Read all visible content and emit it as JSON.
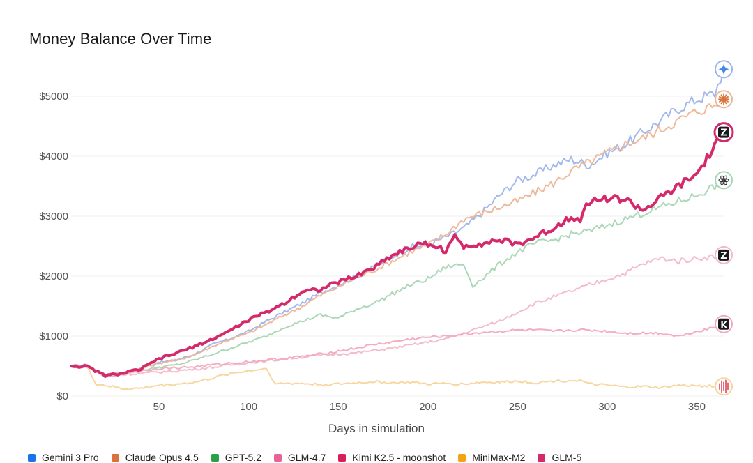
{
  "chart_data": {
    "type": "line",
    "title": "Money Balance Over Time",
    "xlabel": "Days in simulation",
    "ylabel": "",
    "xlim": [
      1,
      365
    ],
    "ylim": [
      0,
      5500
    ],
    "x_ticks": [
      50,
      100,
      150,
      200,
      250,
      300,
      350
    ],
    "y_ticks": [
      0,
      1000,
      2000,
      3000,
      4000,
      5000
    ],
    "y_tick_labels": [
      "$0",
      "$1000",
      "$2000",
      "$3000",
      "$4000",
      "$5000"
    ],
    "grid": "horizontal",
    "legend_position": "bottom",
    "series": [
      {
        "name": "Gemini 3 Pro",
        "color": "#9db5ea",
        "legend_color": "#1a73e8",
        "icon": "gemini-sparkle-icon",
        "final": 5450,
        "highlight": false,
        "points": [
          [
            1,
            500
          ],
          [
            10,
            520
          ],
          [
            20,
            330
          ],
          [
            30,
            380
          ],
          [
            40,
            470
          ],
          [
            50,
            560
          ],
          [
            60,
            600
          ],
          [
            70,
            700
          ],
          [
            80,
            860
          ],
          [
            90,
            960
          ],
          [
            100,
            1080
          ],
          [
            110,
            1250
          ],
          [
            120,
            1400
          ],
          [
            130,
            1550
          ],
          [
            140,
            1720
          ],
          [
            150,
            1850
          ],
          [
            160,
            2000
          ],
          [
            170,
            2150
          ],
          [
            180,
            2320
          ],
          [
            190,
            2480
          ],
          [
            200,
            2530
          ],
          [
            210,
            2650
          ],
          [
            220,
            2800
          ],
          [
            230,
            3050
          ],
          [
            240,
            3350
          ],
          [
            250,
            3600
          ],
          [
            260,
            3700
          ],
          [
            270,
            3850
          ],
          [
            280,
            3950
          ],
          [
            290,
            3850
          ],
          [
            300,
            4050
          ],
          [
            310,
            4200
          ],
          [
            320,
            4400
          ],
          [
            330,
            4600
          ],
          [
            340,
            4800
          ],
          [
            350,
            4950
          ],
          [
            360,
            5050
          ],
          [
            365,
            5450
          ]
        ]
      },
      {
        "name": "Claude Opus 4.5",
        "color": "#edb596",
        "legend_color": "#d9733c",
        "icon": "claude-burst-icon",
        "final": 4950,
        "highlight": false,
        "points": [
          [
            1,
            500
          ],
          [
            10,
            510
          ],
          [
            20,
            340
          ],
          [
            30,
            360
          ],
          [
            40,
            460
          ],
          [
            50,
            550
          ],
          [
            60,
            600
          ],
          [
            70,
            690
          ],
          [
            80,
            830
          ],
          [
            90,
            950
          ],
          [
            100,
            1050
          ],
          [
            110,
            1200
          ],
          [
            120,
            1350
          ],
          [
            130,
            1500
          ],
          [
            140,
            1680
          ],
          [
            150,
            1820
          ],
          [
            160,
            1970
          ],
          [
            170,
            2100
          ],
          [
            180,
            2250
          ],
          [
            190,
            2400
          ],
          [
            200,
            2520
          ],
          [
            210,
            2700
          ],
          [
            220,
            2950
          ],
          [
            230,
            3050
          ],
          [
            240,
            3150
          ],
          [
            250,
            3250
          ],
          [
            260,
            3400
          ],
          [
            270,
            3550
          ],
          [
            280,
            3750
          ],
          [
            290,
            3900
          ],
          [
            300,
            4050
          ],
          [
            310,
            4200
          ],
          [
            320,
            4300
          ],
          [
            330,
            4450
          ],
          [
            340,
            4600
          ],
          [
            350,
            4750
          ],
          [
            360,
            4850
          ],
          [
            365,
            4950
          ]
        ]
      },
      {
        "name": "GPT-5.2",
        "color": "#a8d5b3",
        "legend_color": "#2aa148",
        "icon": "openai-knot-icon",
        "final": 3600,
        "highlight": false,
        "points": [
          [
            1,
            500
          ],
          [
            10,
            500
          ],
          [
            20,
            350
          ],
          [
            30,
            400
          ],
          [
            40,
            430
          ],
          [
            50,
            480
          ],
          [
            60,
            520
          ],
          [
            70,
            600
          ],
          [
            80,
            700
          ],
          [
            90,
            800
          ],
          [
            100,
            900
          ],
          [
            110,
            1000
          ],
          [
            120,
            1150
          ],
          [
            130,
            1250
          ],
          [
            140,
            1350
          ],
          [
            150,
            1300
          ],
          [
            160,
            1450
          ],
          [
            170,
            1550
          ],
          [
            180,
            1700
          ],
          [
            190,
            1850
          ],
          [
            200,
            1950
          ],
          [
            210,
            2150
          ],
          [
            220,
            2200
          ],
          [
            225,
            1850
          ],
          [
            230,
            1950
          ],
          [
            240,
            2200
          ],
          [
            250,
            2400
          ],
          [
            260,
            2550
          ],
          [
            270,
            2600
          ],
          [
            280,
            2700
          ],
          [
            290,
            2750
          ],
          [
            300,
            2850
          ],
          [
            310,
            2950
          ],
          [
            320,
            3050
          ],
          [
            330,
            3150
          ],
          [
            340,
            3250
          ],
          [
            350,
            3350
          ],
          [
            360,
            3500
          ],
          [
            365,
            3600
          ]
        ]
      },
      {
        "name": "GLM-4.7",
        "color": "#f2b8c8",
        "legend_color": "#e8639a",
        "icon": "zhipu-z-icon",
        "final": 2350,
        "highlight": false,
        "points": [
          [
            1,
            500
          ],
          [
            10,
            490
          ],
          [
            20,
            320
          ],
          [
            30,
            360
          ],
          [
            40,
            380
          ],
          [
            50,
            400
          ],
          [
            60,
            420
          ],
          [
            70,
            450
          ],
          [
            80,
            480
          ],
          [
            90,
            520
          ],
          [
            100,
            560
          ],
          [
            110,
            580
          ],
          [
            120,
            620
          ],
          [
            130,
            650
          ],
          [
            140,
            680
          ],
          [
            150,
            700
          ],
          [
            160,
            720
          ],
          [
            170,
            760
          ],
          [
            180,
            800
          ],
          [
            190,
            850
          ],
          [
            200,
            900
          ],
          [
            210,
            950
          ],
          [
            220,
            1050
          ],
          [
            230,
            1150
          ],
          [
            240,
            1250
          ],
          [
            250,
            1400
          ],
          [
            260,
            1550
          ],
          [
            270,
            1650
          ],
          [
            280,
            1750
          ],
          [
            290,
            1850
          ],
          [
            300,
            1950
          ],
          [
            310,
            2050
          ],
          [
            320,
            2200
          ],
          [
            330,
            2300
          ],
          [
            340,
            2250
          ],
          [
            350,
            2300
          ],
          [
            360,
            2330
          ],
          [
            365,
            2350
          ]
        ]
      },
      {
        "name": "Kimi K2.5 - moonshot",
        "color": "#f2a9bd",
        "legend_color": "#d81e5b",
        "icon": "kimi-k-icon",
        "final": 1200,
        "highlight": false,
        "points": [
          [
            1,
            500
          ],
          [
            10,
            490
          ],
          [
            20,
            330
          ],
          [
            30,
            380
          ],
          [
            40,
            420
          ],
          [
            50,
            460
          ],
          [
            60,
            470
          ],
          [
            70,
            490
          ],
          [
            80,
            520
          ],
          [
            90,
            550
          ],
          [
            100,
            570
          ],
          [
            110,
            600
          ],
          [
            120,
            630
          ],
          [
            130,
            660
          ],
          [
            140,
            700
          ],
          [
            150,
            750
          ],
          [
            160,
            800
          ],
          [
            170,
            860
          ],
          [
            180,
            900
          ],
          [
            190,
            950
          ],
          [
            200,
            980
          ],
          [
            210,
            1000
          ],
          [
            220,
            1030
          ],
          [
            230,
            1060
          ],
          [
            240,
            1080
          ],
          [
            250,
            1100
          ],
          [
            260,
            1100
          ],
          [
            270,
            1080
          ],
          [
            280,
            1100
          ],
          [
            290,
            1100
          ],
          [
            300,
            1080
          ],
          [
            310,
            1050
          ],
          [
            320,
            1050
          ],
          [
            330,
            1050
          ],
          [
            340,
            1000
          ],
          [
            350,
            1080
          ],
          [
            360,
            1150
          ],
          [
            365,
            1200
          ]
        ]
      },
      {
        "name": "MiniMax-M2",
        "color": "#f7d49c",
        "legend_color": "#f4a316",
        "icon": "minimax-wave-icon",
        "final": 160,
        "highlight": false,
        "points": [
          [
            1,
            500
          ],
          [
            10,
            490
          ],
          [
            15,
            200
          ],
          [
            20,
            180
          ],
          [
            30,
            120
          ],
          [
            40,
            130
          ],
          [
            50,
            180
          ],
          [
            60,
            200
          ],
          [
            70,
            230
          ],
          [
            80,
            300
          ],
          [
            90,
            380
          ],
          [
            100,
            420
          ],
          [
            110,
            460
          ],
          [
            115,
            200
          ],
          [
            120,
            210
          ],
          [
            130,
            210
          ],
          [
            140,
            190
          ],
          [
            150,
            200
          ],
          [
            160,
            220
          ],
          [
            170,
            240
          ],
          [
            180,
            220
          ],
          [
            190,
            230
          ],
          [
            200,
            200
          ],
          [
            210,
            210
          ],
          [
            220,
            200
          ],
          [
            230,
            230
          ],
          [
            240,
            230
          ],
          [
            250,
            250
          ],
          [
            260,
            220
          ],
          [
            270,
            250
          ],
          [
            280,
            260
          ],
          [
            285,
            260
          ],
          [
            290,
            200
          ],
          [
            300,
            180
          ],
          [
            310,
            150
          ],
          [
            320,
            160
          ],
          [
            330,
            140
          ],
          [
            340,
            180
          ],
          [
            350,
            170
          ],
          [
            360,
            170
          ],
          [
            365,
            160
          ]
        ]
      },
      {
        "name": "GLM-5",
        "color": "#d42a6c",
        "legend_color": "#d42a6c",
        "icon": "zhipu-z-icon",
        "final": 4400,
        "highlight": true,
        "points": [
          [
            1,
            500
          ],
          [
            10,
            490
          ],
          [
            20,
            340
          ],
          [
            30,
            380
          ],
          [
            40,
            450
          ],
          [
            50,
            620
          ],
          [
            60,
            720
          ],
          [
            70,
            830
          ],
          [
            80,
            950
          ],
          [
            90,
            1100
          ],
          [
            100,
            1270
          ],
          [
            110,
            1400
          ],
          [
            120,
            1550
          ],
          [
            130,
            1750
          ],
          [
            140,
            1780
          ],
          [
            150,
            1900
          ],
          [
            160,
            2000
          ],
          [
            170,
            2150
          ],
          [
            180,
            2350
          ],
          [
            190,
            2480
          ],
          [
            200,
            2550
          ],
          [
            210,
            2420
          ],
          [
            215,
            2650
          ],
          [
            220,
            2500
          ],
          [
            230,
            2550
          ],
          [
            240,
            2600
          ],
          [
            250,
            2530
          ],
          [
            260,
            2650
          ],
          [
            270,
            2800
          ],
          [
            280,
            3000
          ],
          [
            285,
            2950
          ],
          [
            290,
            3250
          ],
          [
            300,
            3300
          ],
          [
            310,
            3280
          ],
          [
            320,
            3100
          ],
          [
            330,
            3300
          ],
          [
            340,
            3500
          ],
          [
            350,
            3700
          ],
          [
            360,
            4150
          ],
          [
            365,
            4400
          ]
        ]
      }
    ]
  }
}
